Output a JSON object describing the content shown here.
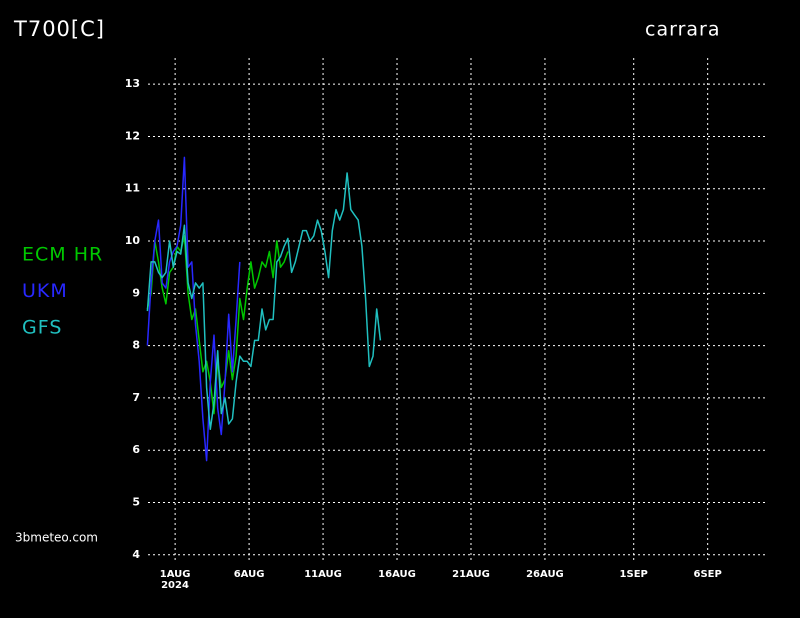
{
  "chart_data": {
    "type": "line",
    "title": "T700[C]",
    "subtitle": "carrara",
    "watermark": "3bmeteo.com",
    "x_year_label": "2024",
    "x": [
      "2024-07-30T03:00",
      "2024-07-30T09:00",
      "2024-07-30T15:00",
      "2024-07-30T21:00",
      "2024-07-31T03:00",
      "2024-07-31T09:00",
      "2024-07-31T15:00",
      "2024-07-31T21:00",
      "2024-08-01T03:00",
      "2024-08-01T09:00",
      "2024-08-01T15:00",
      "2024-08-01T21:00",
      "2024-08-02T03:00",
      "2024-08-02T09:00",
      "2024-08-02T15:00",
      "2024-08-02T21:00",
      "2024-08-03T03:00",
      "2024-08-03T09:00",
      "2024-08-03T15:00",
      "2024-08-03T21:00",
      "2024-08-04T03:00",
      "2024-08-04T09:00",
      "2024-08-04T15:00",
      "2024-08-04T21:00",
      "2024-08-05T03:00",
      "2024-08-05T09:00",
      "2024-08-05T15:00",
      "2024-08-05T21:00",
      "2024-08-06T03:00",
      "2024-08-06T09:00",
      "2024-08-06T15:00",
      "2024-08-06T21:00",
      "2024-08-07T03:00",
      "2024-08-07T09:00",
      "2024-08-07T15:00",
      "2024-08-07T21:00",
      "2024-08-08T03:00",
      "2024-08-08T09:00",
      "2024-08-08T15:00",
      "2024-08-08T21:00",
      "2024-08-09T03:00",
      "2024-08-09T09:00",
      "2024-08-09T15:00",
      "2024-08-09T21:00",
      "2024-08-10T03:00",
      "2024-08-10T09:00",
      "2024-08-10T15:00",
      "2024-08-10T21:00",
      "2024-08-11T03:00",
      "2024-08-11T09:00",
      "2024-08-11T15:00",
      "2024-08-11T21:00",
      "2024-08-12T03:00",
      "2024-08-12T09:00",
      "2024-08-12T15:00",
      "2024-08-12T21:00",
      "2024-08-13T03:00",
      "2024-08-13T09:00",
      "2024-08-13T15:00",
      "2024-08-13T21:00",
      "2024-08-14T03:00",
      "2024-08-14T09:00",
      "2024-08-14T15:00",
      "2024-08-14T21:00"
    ],
    "series": [
      {
        "name": "ECM HR",
        "color": "#00c800",
        "values": [
          8.7,
          9.0,
          10.0,
          9.6,
          9.1,
          8.8,
          9.4,
          9.5,
          9.9,
          9.8,
          10.1,
          9.0,
          8.5,
          8.7,
          8.1,
          7.5,
          7.7,
          7.3,
          6.7,
          7.7,
          7.2,
          7.35,
          7.9,
          7.35,
          7.8,
          8.9,
          8.5,
          9.1,
          9.6,
          9.1,
          9.3,
          9.6,
          9.5,
          9.8,
          9.3,
          10.0,
          9.5,
          9.6,
          9.8,
          null,
          null,
          null,
          null,
          null,
          null,
          null,
          null,
          null,
          null,
          null,
          null,
          null,
          null,
          null,
          null,
          null,
          null,
          null,
          null,
          null,
          null,
          null,
          null,
          null
        ]
      },
      {
        "name": "UKM",
        "color": "#2828ff",
        "values": [
          8.0,
          9.2,
          10.0,
          10.4,
          9.2,
          9.1,
          9.6,
          9.8,
          9.9,
          10.3,
          11.6,
          9.5,
          9.6,
          8.4,
          7.7,
          6.6,
          5.8,
          7.3,
          8.2,
          6.8,
          6.3,
          7.3,
          8.6,
          7.5,
          8.5,
          9.6,
          null,
          null,
          null,
          null,
          null,
          null,
          null,
          null,
          null,
          null,
          null,
          null,
          null,
          null,
          null,
          null,
          null,
          null,
          null,
          null,
          null,
          null,
          null,
          null,
          null,
          null,
          null,
          null,
          null,
          null,
          null,
          null,
          null,
          null,
          null,
          null,
          null,
          null
        ]
      },
      {
        "name": "GFS",
        "color": "#20c0c0",
        "values": [
          8.66,
          9.6,
          9.6,
          9.4,
          9.3,
          9.4,
          10.0,
          9.5,
          9.8,
          9.75,
          10.3,
          9.2,
          8.9,
          9.2,
          9.1,
          9.2,
          7.2,
          6.4,
          6.9,
          7.9,
          6.7,
          7.0,
          6.5,
          6.6,
          7.3,
          7.8,
          7.7,
          7.7,
          7.6,
          8.1,
          8.1,
          8.7,
          8.3,
          8.5,
          8.5,
          9.6,
          9.7,
          9.9,
          10.05,
          9.4,
          9.6,
          9.9,
          10.2,
          10.2,
          10.0,
          10.1,
          10.4,
          10.2,
          9.8,
          9.3,
          10.2,
          10.6,
          10.4,
          10.6,
          11.3,
          10.6,
          10.5,
          10.4,
          9.9,
          8.9,
          7.6,
          7.8,
          8.7,
          8.1
        ]
      }
    ],
    "xlim": [
      "2024-07-30T04:00",
      "2024-09-09T21:00"
    ],
    "xticks": [
      {
        "value": "2024-08-01T00:00",
        "label": "1AUG"
      },
      {
        "value": "2024-08-06T00:00",
        "label": "6AUG"
      },
      {
        "value": "2024-08-11T00:00",
        "label": "11AUG"
      },
      {
        "value": "2024-08-16T00:00",
        "label": "16AUG"
      },
      {
        "value": "2024-08-21T00:00",
        "label": "21AUG"
      },
      {
        "value": "2024-08-26T00:00",
        "label": "26AUG"
      },
      {
        "value": "2024-09-01T00:00",
        "label": "1SEP"
      },
      {
        "value": "2024-09-06T00:00",
        "label": "6SEP"
      }
    ],
    "ylim": [
      3.9,
      13.5
    ],
    "yticks": [
      4,
      5,
      6,
      7,
      8,
      9,
      10,
      11,
      12,
      13
    ],
    "grid": true
  }
}
